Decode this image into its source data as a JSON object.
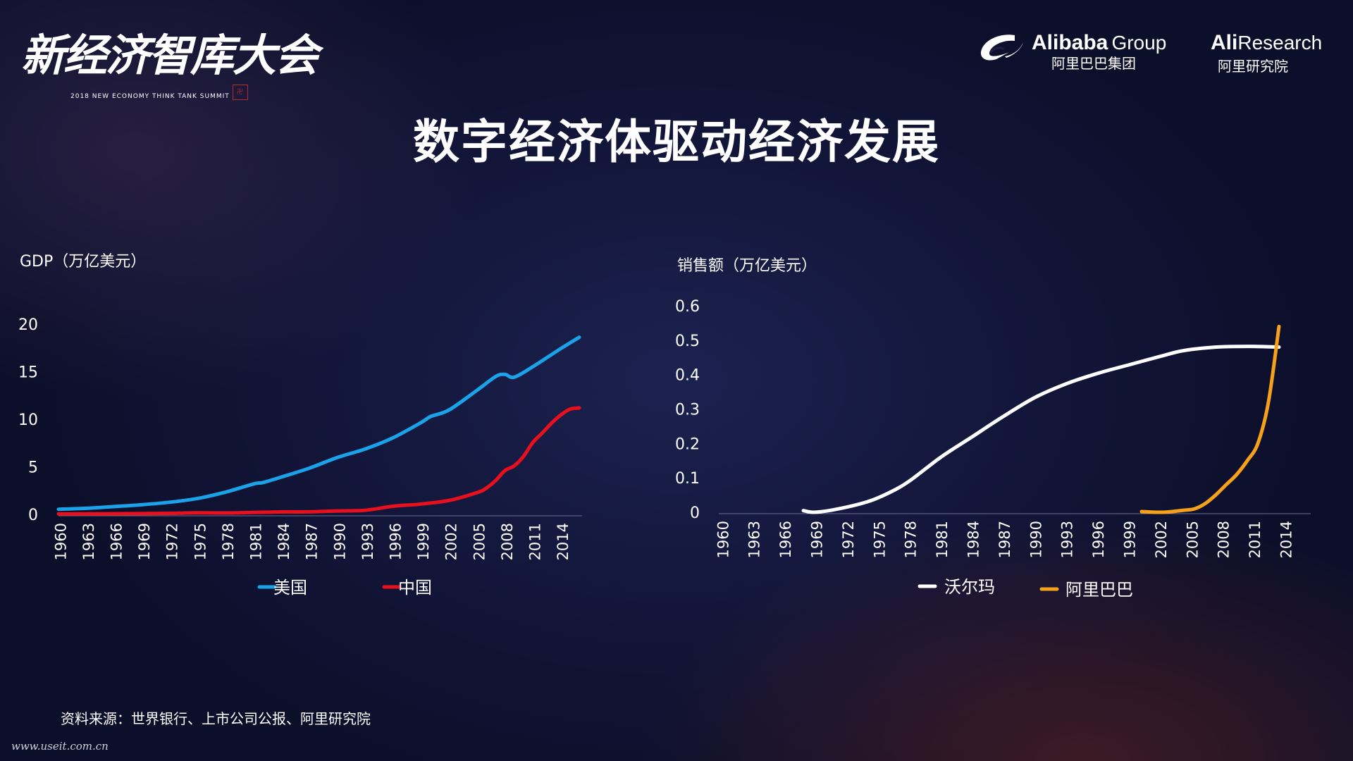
{
  "header": {
    "event_logo_text": "新经济智库大会",
    "event_logo_sub": "2018 NEW ECONOMY THINK TANK SUMMIT",
    "alibaba_en_bold": "Alibaba",
    "alibaba_en_group": "Group",
    "alibaba_cn": "阿里巴巴集团",
    "aliresearch_en_bold": "Ali",
    "aliresearch_en_rest": "Research",
    "aliresearch_cn": "阿里研究院"
  },
  "title": "数字经济体驱动经济发展",
  "footer": {
    "source": "资料来源：世界银行、上市公司公报、阿里研究院",
    "watermark": "www.useit.com.cn"
  },
  "colors": {
    "usa": "#1aa3e8",
    "china": "#e8101c",
    "walmart": "#ffffff",
    "alibaba": "#f7a11a"
  },
  "chart_data": [
    {
      "type": "line",
      "ylabel": "GDP（万亿美元）",
      "xlabel": "",
      "x_ticks": [
        "1960",
        "1963",
        "1966",
        "1969",
        "1972",
        "1975",
        "1978",
        "1981",
        "1984",
        "1987",
        "1990",
        "1993",
        "1996",
        "1999",
        "2002",
        "2005",
        "2008",
        "2011",
        "2014"
      ],
      "y_ticks": [
        "0",
        "5",
        "10",
        "15",
        "20"
      ],
      "ylim": [
        0,
        20
      ],
      "xlim": [
        1960,
        2016
      ],
      "grid": false,
      "legend_position": "bottom",
      "series": [
        {
          "name": "美国",
          "x": [
            1960,
            1963,
            1966,
            1969,
            1972,
            1975,
            1978,
            1981,
            1982,
            1984,
            1987,
            1990,
            1993,
            1996,
            1999,
            2000,
            2002,
            2005,
            2007,
            2008,
            2009,
            2011,
            2014,
            2016
          ],
          "values": [
            0.54,
            0.64,
            0.82,
            1.02,
            1.28,
            1.68,
            2.35,
            3.2,
            3.35,
            3.93,
            4.87,
            5.98,
            6.88,
            8.07,
            9.66,
            10.28,
            10.98,
            13.04,
            14.48,
            14.72,
            14.42,
            15.52,
            17.42,
            18.62
          ]
        },
        {
          "name": "中国",
          "x": [
            1960,
            1963,
            1966,
            1969,
            1972,
            1975,
            1978,
            1981,
            1984,
            1987,
            1990,
            1993,
            1996,
            1999,
            2002,
            2005,
            2006,
            2007,
            2008,
            2009,
            2010,
            2011,
            2012,
            2013,
            2014,
            2015,
            2016
          ],
          "values": [
            0.06,
            0.05,
            0.07,
            0.08,
            0.11,
            0.16,
            0.15,
            0.2,
            0.26,
            0.27,
            0.36,
            0.44,
            0.86,
            1.09,
            1.47,
            2.29,
            2.75,
            3.55,
            4.59,
            5.1,
            6.09,
            7.55,
            8.53,
            9.57,
            10.44,
            11.06,
            11.19
          ]
        }
      ]
    },
    {
      "type": "line",
      "ylabel": "销售额（万亿美元）",
      "xlabel": "",
      "x_ticks": [
        "1960",
        "1963",
        "1966",
        "1969",
        "1972",
        "1975",
        "1978",
        "1981",
        "1984",
        "1987",
        "1990",
        "1993",
        "1996",
        "1999",
        "2002",
        "2005",
        "2008",
        "2011",
        "2014"
      ],
      "y_ticks": [
        "0",
        "0.1",
        "0.2",
        "0.3",
        "0.4",
        "0.5",
        "0.6"
      ],
      "ylim": [
        0,
        0.6
      ],
      "xlim": [
        1960,
        2016
      ],
      "grid": false,
      "legend_position": "bottom",
      "series": [
        {
          "name": "沃尔玛",
          "x": [
            1968,
            1969,
            1971,
            1974,
            1976,
            1978,
            1981,
            1984,
            1987,
            1990,
            1993,
            1996,
            1999,
            2002,
            2004,
            2007,
            2010,
            2013
          ],
          "values": [
            0.005,
            0.0,
            0.008,
            0.03,
            0.055,
            0.09,
            0.16,
            0.22,
            0.28,
            0.335,
            0.375,
            0.405,
            0.43,
            0.455,
            0.47,
            0.48,
            0.482,
            0.48
          ]
        },
        {
          "name": "阿里巴巴",
          "x": [
            2000,
            2002,
            2004,
            2005,
            2006,
            2007,
            2008,
            2009,
            2010,
            2011,
            2012,
            2013
          ],
          "values": [
            0.002,
            0.0,
            0.006,
            0.01,
            0.025,
            0.05,
            0.08,
            0.11,
            0.15,
            0.2,
            0.32,
            0.54
          ]
        }
      ]
    }
  ]
}
